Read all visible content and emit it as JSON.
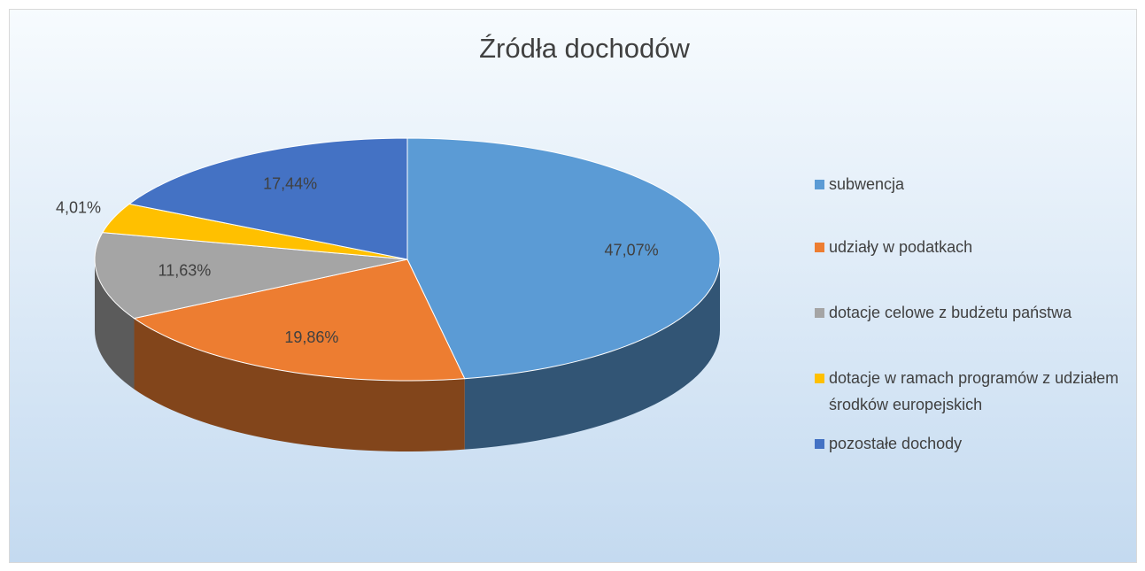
{
  "chart_data": {
    "type": "pie",
    "title": "Źródła dochodów",
    "categories": [
      "subwencja",
      "udziały w podatkach",
      "dotacje celowe z budżetu państwa",
      "dotacje w ramach programów z udziałem środków europejskich",
      "pozostałe dochody"
    ],
    "values": [
      47.07,
      19.86,
      11.63,
      4.01,
      17.44
    ],
    "value_labels": [
      "47,07%",
      "19,86%",
      "11,63%",
      "4,01%",
      "17,44%"
    ],
    "colors": [
      "#5b9bd5",
      "#ed7d31",
      "#a5a5a5",
      "#ffc000",
      "#4472c4"
    ],
    "legend": "right"
  }
}
